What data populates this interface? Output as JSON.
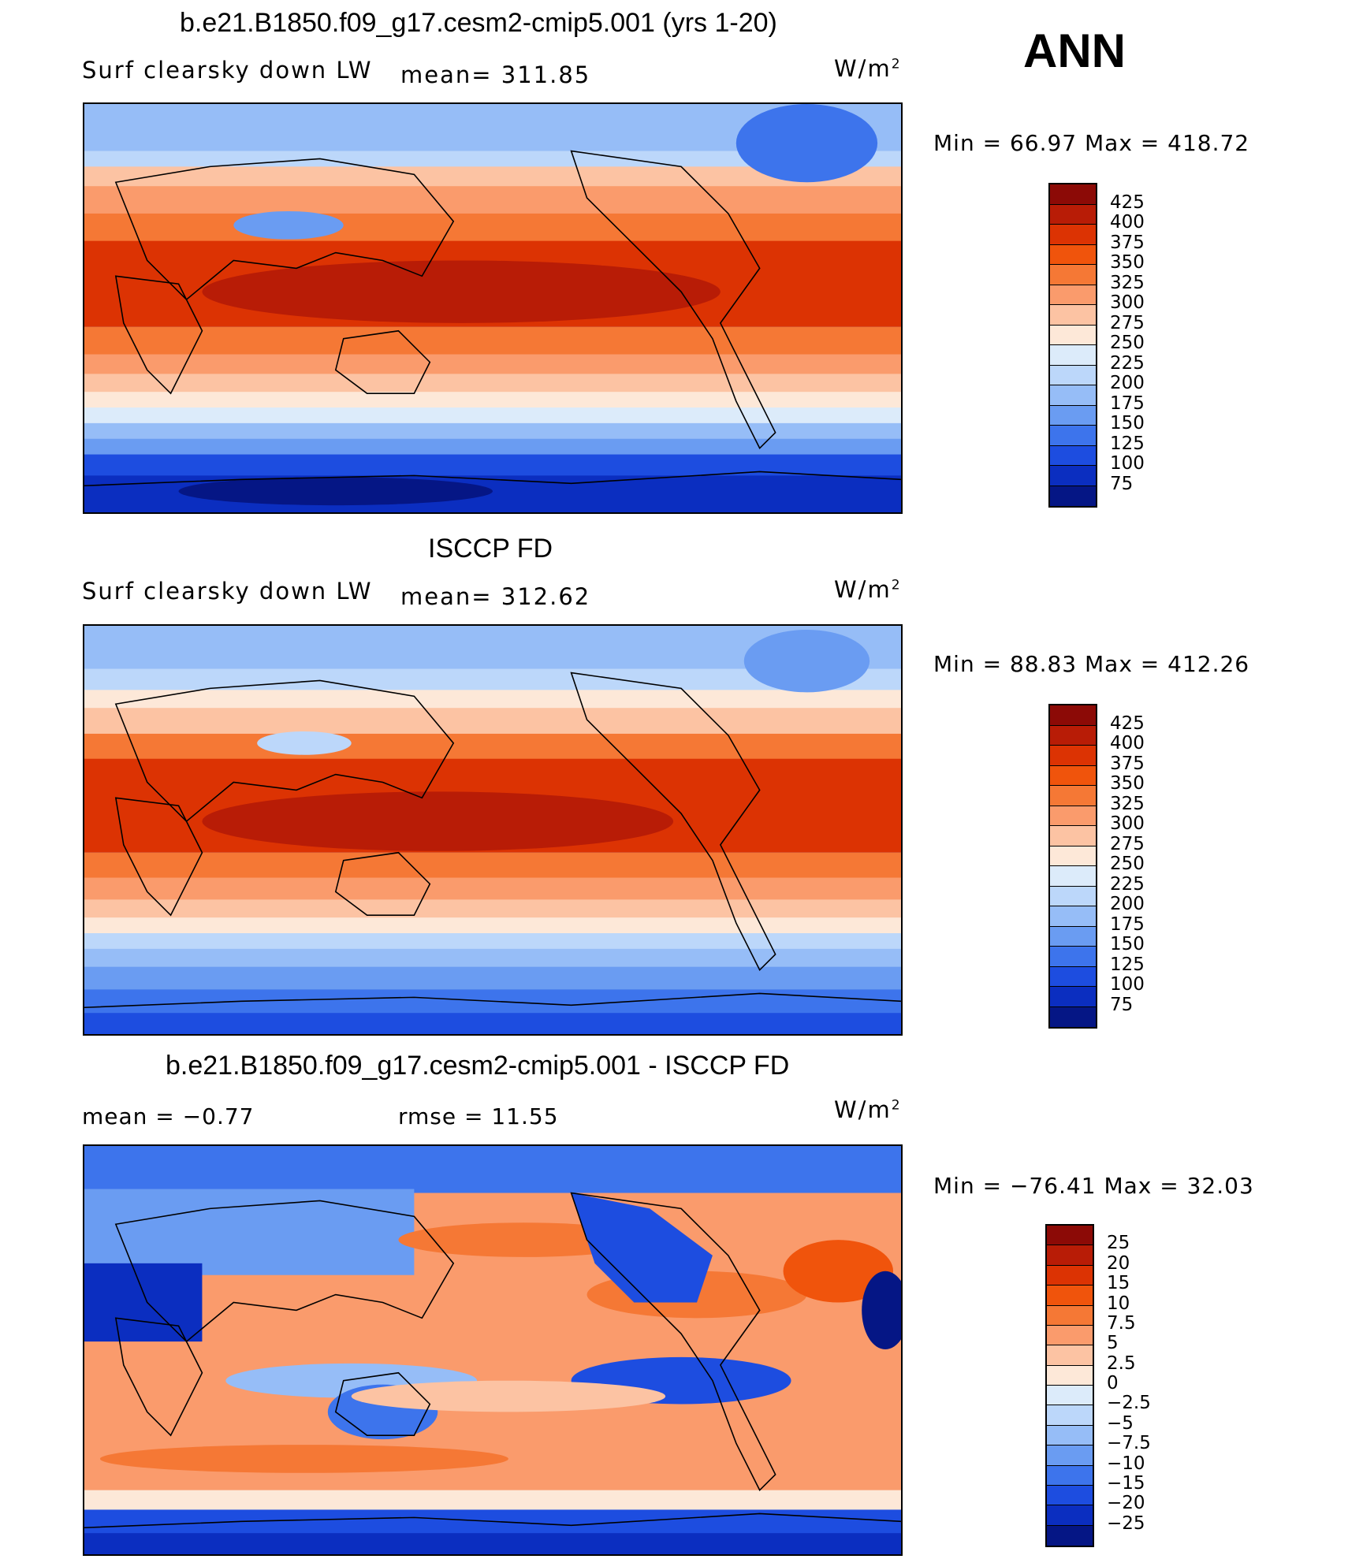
{
  "season": "ANN",
  "units_base": "W/m",
  "units_sup": "2",
  "panels": [
    {
      "title": "b.e21.B1850.f09_g17.cesm2-cmip5.001 (yrs 1-20)",
      "left_label": "Surf clearsky down LW",
      "center_label": "mean= 311.85",
      "min_max": "Min =   66.97 Max = 418.72",
      "kind": "abs"
    },
    {
      "title": "ISCCP FD",
      "left_label": "Surf clearsky down LW",
      "center_label": "mean= 312.62",
      "min_max": "Min =   88.83 Max = 412.26",
      "kind": "abs"
    },
    {
      "title": "b.e21.B1850.f09_g17.cesm2-cmip5.001 - ISCCP FD",
      "left_label": "mean =   −0.77",
      "center_label": "rmse =   11.55",
      "min_max": "Min = −76.41  Max =   32.03",
      "kind": "diff"
    }
  ],
  "colorbars": {
    "abs": {
      "levels": [
        "425",
        "400",
        "375",
        "350",
        "325",
        "300",
        "275",
        "250",
        "225",
        "200",
        "175",
        "150",
        "125",
        "100",
        "75"
      ],
      "colors": [
        "#8c0a06",
        "#b81c06",
        "#dc3303",
        "#f0540c",
        "#f57835",
        "#fa9b6c",
        "#fcc3a3",
        "#fde8d8",
        "#dcebfa",
        "#bcd7fa",
        "#96bdf7",
        "#6a9cf2",
        "#3d74ec",
        "#1d4de0",
        "#0b2ec0",
        "#051685"
      ]
    },
    "diff": {
      "levels": [
        "25",
        "20",
        "15",
        "10",
        "7.5",
        "5",
        "2.5",
        "0",
        "−2.5",
        "−5",
        "−7.5",
        "−10",
        "−15",
        "−20",
        "−25"
      ],
      "colors": [
        "#8c0a06",
        "#b81c06",
        "#dc3303",
        "#f0540c",
        "#f57835",
        "#fa9b6c",
        "#fcc3a3",
        "#fde8d8",
        "#dcebfa",
        "#bcd7fa",
        "#96bdf7",
        "#6a9cf2",
        "#3d74ec",
        "#1d4de0",
        "#0b2ec0",
        "#051685"
      ]
    }
  }
}
